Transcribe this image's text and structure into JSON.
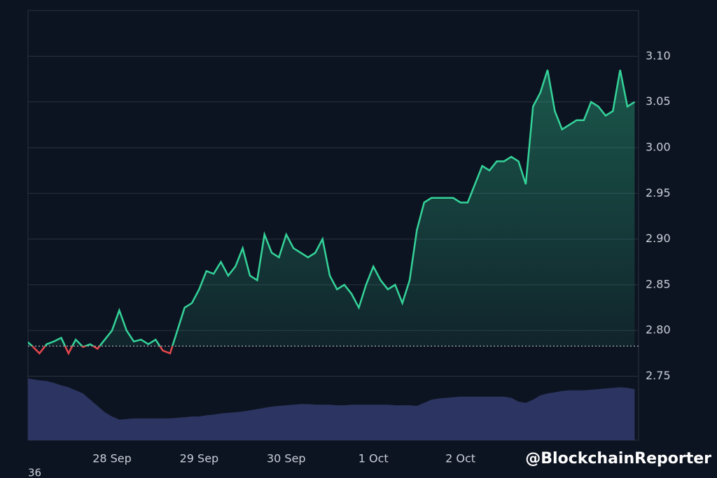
{
  "chart_data": {
    "type": "line",
    "categories": [
      null,
      null,
      null,
      null,
      null,
      null,
      null,
      null,
      null,
      null,
      null,
      null,
      "28 Sep",
      null,
      null,
      null,
      null,
      null,
      null,
      null,
      null,
      null,
      null,
      null,
      "29 Sep",
      null,
      null,
      null,
      null,
      null,
      null,
      null,
      null,
      null,
      null,
      null,
      "30 Sep",
      null,
      null,
      null,
      null,
      null,
      null,
      null,
      null,
      null,
      null,
      null,
      "1 Oct",
      null,
      null,
      null,
      null,
      null,
      null,
      null,
      null,
      null,
      null,
      null,
      "2 Oct",
      null,
      null,
      null,
      null,
      null,
      null,
      null,
      null,
      null,
      null,
      null,
      null,
      null,
      null,
      null,
      null,
      null,
      null,
      null,
      null,
      null,
      null,
      null,
      null
    ],
    "series": [
      {
        "name": "price",
        "color": "#34d399",
        "down_color": "#e5484d",
        "values": [
          2.79,
          2.783,
          2.775,
          2.785,
          2.788,
          2.792,
          2.775,
          2.79,
          2.782,
          2.785,
          2.78,
          2.79,
          2.8,
          2.822,
          2.8,
          2.788,
          2.79,
          2.785,
          2.79,
          2.778,
          2.775,
          2.8,
          2.825,
          2.83,
          2.845,
          2.865,
          2.862,
          2.875,
          2.86,
          2.87,
          2.89,
          2.86,
          2.855,
          2.905,
          2.885,
          2.88,
          2.905,
          2.89,
          2.885,
          2.88,
          2.885,
          2.9,
          2.86,
          2.845,
          2.85,
          2.84,
          2.825,
          2.85,
          2.87,
          2.855,
          2.845,
          2.85,
          2.83,
          2.855,
          2.91,
          2.94,
          2.945,
          2.945,
          2.945,
          2.945,
          2.94,
          2.94,
          2.96,
          2.98,
          2.975,
          2.985,
          2.985,
          2.99,
          2.985,
          2.96,
          3.045,
          3.06,
          3.085,
          3.04,
          3.02,
          3.025,
          3.03,
          3.03,
          3.05,
          3.045,
          3.035,
          3.04,
          3.085,
          3.045,
          3.05
        ]
      },
      {
        "name": "volume",
        "color": "#2c3561",
        "axis": "volume",
        "values": [
          100,
          98,
          96,
          95,
          92,
          88,
          85,
          80,
          75,
          65,
          55,
          45,
          38,
          33,
          34,
          35,
          35,
          35,
          35,
          35,
          35,
          36,
          37,
          38,
          38,
          40,
          41,
          43,
          44,
          45,
          46,
          48,
          50,
          52,
          54,
          55,
          56,
          57,
          58,
          58,
          57,
          57,
          57,
          56,
          56,
          57,
          57,
          57,
          57,
          57,
          57,
          56,
          56,
          56,
          55,
          60,
          65,
          67,
          68,
          69,
          70,
          70,
          70,
          70,
          70,
          70,
          70,
          68,
          62,
          60,
          65,
          72,
          75,
          77,
          79,
          80,
          80,
          80,
          81,
          82,
          83,
          84,
          85,
          84,
          82
        ]
      }
    ],
    "ylim": [
      2.68,
      3.15
    ],
    "vlim": [
      0,
      100
    ],
    "yticks": [
      2.75,
      {
        "value": 2.8,
        "label": "2.80"
      },
      2.85,
      {
        "value": 2.9,
        "label": "2.90"
      },
      2.95,
      {
        "value": 3.0,
        "label": "3.00"
      },
      3.05,
      {
        "value": 3.1,
        "label": "3.10"
      }
    ],
    "baseline": 2.783,
    "grid": true,
    "corner_label": "36",
    "watermark": "@BlockchainReporter"
  }
}
